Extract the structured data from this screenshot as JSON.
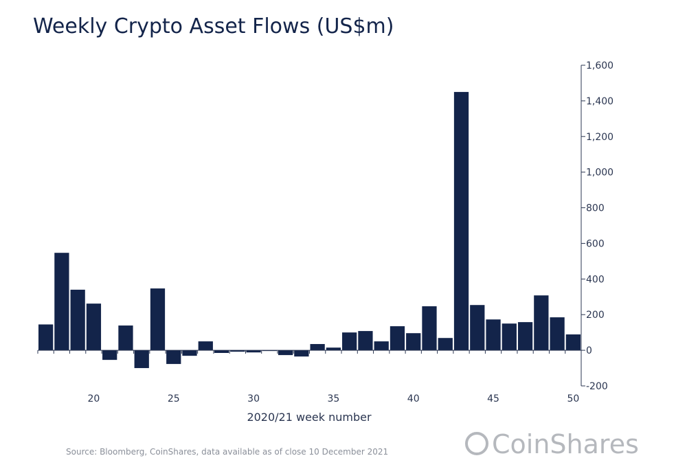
{
  "chart_data": {
    "type": "bar",
    "title": "Weekly Crypto Asset Flows (US$m)",
    "xlabel": "2020/21 week number",
    "ylabel": "",
    "ylim": [
      -200,
      1600
    ],
    "yticks": [
      -200,
      0,
      200,
      400,
      600,
      800,
      1000,
      1200,
      1400,
      1600
    ],
    "ytick_labels": [
      "-200",
      "0",
      "200",
      "400",
      "600",
      "800",
      "1,000",
      "1,200",
      "1,400",
      "1,600"
    ],
    "xtick_labels": [
      "20",
      "25",
      "30",
      "35",
      "40",
      "45",
      "50"
    ],
    "xtick_values": [
      20,
      25,
      30,
      35,
      40,
      45,
      50
    ],
    "categories": [
      17,
      18,
      19,
      20,
      21,
      22,
      23,
      24,
      25,
      26,
      27,
      28,
      29,
      30,
      31,
      32,
      33,
      34,
      35,
      36,
      37,
      38,
      39,
      40,
      41,
      42,
      43,
      44,
      45,
      46,
      47,
      48,
      49,
      50
    ],
    "values": [
      145,
      547,
      340,
      262,
      -54,
      139,
      -100,
      347,
      -77,
      -31,
      50,
      -15,
      -8,
      -12,
      -4,
      -27,
      -35,
      35,
      15,
      100,
      108,
      50,
      135,
      96,
      247,
      69,
      1450,
      254,
      173,
      150,
      158,
      308,
      185,
      89
    ],
    "grid": false,
    "legend": "none",
    "bar_color": "#13244a"
  },
  "source": "Source: Bloomberg, CoinShares, data available as of close 10 December 2021",
  "logo_text": "CoinShares"
}
